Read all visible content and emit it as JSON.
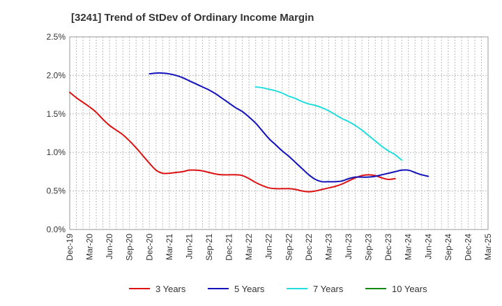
{
  "chart_data": {
    "type": "line",
    "title": "[3241]  Trend of StDev of Ordinary Income Margin",
    "x_tick_labels": [
      "Dec-19",
      "Mar-20",
      "Jun-20",
      "Sep-20",
      "Dec-20",
      "Mar-21",
      "Jun-21",
      "Sep-21",
      "Dec-21",
      "Mar-22",
      "Jun-22",
      "Sep-22",
      "Dec-22",
      "Mar-23",
      "Jun-23",
      "Sep-23",
      "Dec-23",
      "Mar-24",
      "Jun-24",
      "Sep-24",
      "Dec-24",
      "Mar-25"
    ],
    "y_tick_labels": [
      "0.0%",
      "0.5%",
      "1.0%",
      "1.5%",
      "2.0%",
      "2.5%"
    ],
    "ylim": [
      0,
      2.5
    ],
    "y_unit": "%",
    "grid": true,
    "legend_position": "bottom",
    "series": [
      {
        "name": "3 Years",
        "color": "#dd1111",
        "start_index": 0,
        "values": [
          1.78,
          1.71,
          1.65,
          1.59,
          1.52,
          1.43,
          1.35,
          1.29,
          1.23,
          1.15,
          1.06,
          0.96,
          0.86,
          0.77,
          0.73,
          0.73,
          0.74,
          0.75,
          0.77,
          0.77,
          0.76,
          0.74,
          0.72,
          0.71,
          0.71,
          0.71,
          0.7,
          0.66,
          0.61,
          0.57,
          0.54,
          0.53,
          0.53,
          0.53,
          0.52,
          0.5,
          0.49,
          0.5,
          0.52,
          0.54,
          0.56,
          0.59,
          0.63,
          0.67,
          0.7,
          0.71,
          0.7,
          0.67,
          0.65,
          0.66
        ]
      },
      {
        "name": "5 Years",
        "color": "#1111bb",
        "start_index": 12,
        "values": [
          2.02,
          2.03,
          2.03,
          2.02,
          2.0,
          1.97,
          1.93,
          1.89,
          1.85,
          1.81,
          1.76,
          1.7,
          1.64,
          1.58,
          1.53,
          1.46,
          1.38,
          1.28,
          1.18,
          1.1,
          1.02,
          0.95,
          0.87,
          0.79,
          0.71,
          0.65,
          0.62,
          0.62,
          0.62,
          0.63,
          0.66,
          0.68,
          0.68,
          0.68,
          0.69,
          0.71,
          0.73,
          0.75,
          0.77,
          0.77,
          0.74,
          0.71,
          0.69
        ]
      },
      {
        "name": "7 Years",
        "color": "#22dddd",
        "start_index": 28,
        "values": [
          1.85,
          1.84,
          1.82,
          1.8,
          1.77,
          1.73,
          1.7,
          1.66,
          1.63,
          1.61,
          1.58,
          1.54,
          1.49,
          1.44,
          1.4,
          1.35,
          1.29,
          1.22,
          1.15,
          1.08,
          1.02,
          0.97,
          0.9
        ]
      },
      {
        "name": "10 Years",
        "color": "#118811",
        "start_index": 0,
        "values": []
      }
    ]
  }
}
